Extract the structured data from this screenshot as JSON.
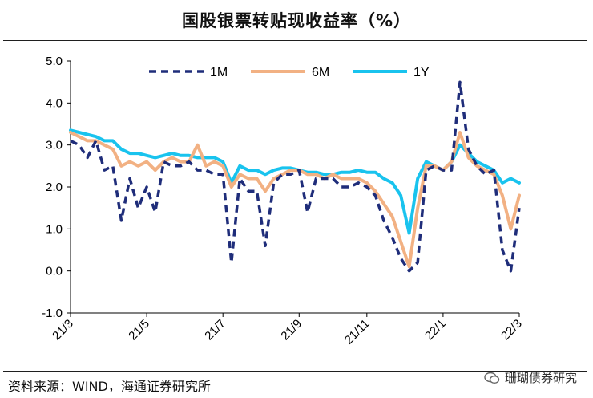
{
  "title": "国股银票转贴现收益率（%）",
  "source": "资料来源：WIND，海通证券研究所",
  "watermark": "珊瑚债券研究",
  "chart_data": {
    "type": "line",
    "title": "国股银票转贴现收益率（%）",
    "xlabel": "",
    "ylabel": "",
    "ylim": [
      -1.0,
      5.0
    ],
    "yticks": [
      "-1.0",
      "0.0",
      "1.0",
      "2.0",
      "3.0",
      "4.0",
      "5.0"
    ],
    "xticks": [
      "21/3",
      "21/5",
      "21/7",
      "21/9",
      "21/11",
      "22/1",
      "22/3"
    ],
    "grid": false,
    "legend_position": "top",
    "x": [
      "21/3/1",
      "21/3/8",
      "21/3/15",
      "21/3/22",
      "21/3/29",
      "21/4/5",
      "21/4/12",
      "21/4/19",
      "21/4/26",
      "21/5/3",
      "21/5/10",
      "21/5/17",
      "21/5/24",
      "21/5/31",
      "21/6/7",
      "21/6/14",
      "21/6/21",
      "21/6/28",
      "21/7/5",
      "21/7/12",
      "21/7/19",
      "21/7/26",
      "21/8/2",
      "21/8/9",
      "21/8/16",
      "21/8/23",
      "21/8/30",
      "21/9/6",
      "21/9/13",
      "21/9/20",
      "21/9/27",
      "21/10/4",
      "21/10/11",
      "21/10/18",
      "21/10/25",
      "21/11/1",
      "21/11/8",
      "21/11/15",
      "21/11/22",
      "21/11/29",
      "21/12/6",
      "21/12/13",
      "21/12/20",
      "21/12/27",
      "22/1/3",
      "22/1/10",
      "22/1/17",
      "22/1/24",
      "22/1/31",
      "22/2/7",
      "22/2/14",
      "22/2/21",
      "22/2/28",
      "22/3/7"
    ],
    "series": [
      {
        "name": "1M",
        "color": "#1f2d7a",
        "style": "dashed",
        "values": [
          3.1,
          3.0,
          2.7,
          3.1,
          2.4,
          2.5,
          1.2,
          2.2,
          1.5,
          2.0,
          1.4,
          2.6,
          2.5,
          2.5,
          2.6,
          2.4,
          2.4,
          2.3,
          2.3,
          0.2,
          2.2,
          1.9,
          1.9,
          0.6,
          2.1,
          2.3,
          2.3,
          2.4,
          1.4,
          2.2,
          2.2,
          2.2,
          2.0,
          2.0,
          2.1,
          2.0,
          1.8,
          1.2,
          0.8,
          0.3,
          0.0,
          0.2,
          2.4,
          2.5,
          2.4,
          2.4,
          4.5,
          2.9,
          2.5,
          2.3,
          2.4,
          0.5,
          0.0,
          1.5
        ]
      },
      {
        "name": "6M",
        "color": "#f2b183",
        "style": "solid",
        "values": [
          3.3,
          3.2,
          3.1,
          3.1,
          3.0,
          2.9,
          2.5,
          2.6,
          2.5,
          2.6,
          2.4,
          2.6,
          2.7,
          2.6,
          2.6,
          3.0,
          2.5,
          2.6,
          2.5,
          2.0,
          2.3,
          2.2,
          2.2,
          1.9,
          2.2,
          2.3,
          2.4,
          2.4,
          2.3,
          2.3,
          2.2,
          2.3,
          2.2,
          2.2,
          2.2,
          2.1,
          1.9,
          1.6,
          1.3,
          0.7,
          0.1,
          1.5,
          2.5,
          2.5,
          2.4,
          2.6,
          3.3,
          2.7,
          2.5,
          2.4,
          2.3,
          1.8,
          1.0,
          1.8
        ]
      },
      {
        "name": "1Y",
        "color": "#19c3ee",
        "style": "solid",
        "values": [
          3.35,
          3.3,
          3.25,
          3.2,
          3.1,
          3.1,
          2.9,
          2.8,
          2.8,
          2.75,
          2.7,
          2.75,
          2.8,
          2.75,
          2.75,
          2.7,
          2.7,
          2.7,
          2.6,
          2.1,
          2.5,
          2.4,
          2.4,
          2.3,
          2.4,
          2.45,
          2.45,
          2.4,
          2.35,
          2.35,
          2.3,
          2.3,
          2.35,
          2.35,
          2.4,
          2.35,
          2.35,
          2.2,
          2.1,
          1.8,
          0.9,
          2.2,
          2.6,
          2.5,
          2.4,
          2.6,
          3.0,
          2.8,
          2.6,
          2.5,
          2.4,
          2.1,
          2.2,
          2.1
        ]
      }
    ]
  }
}
